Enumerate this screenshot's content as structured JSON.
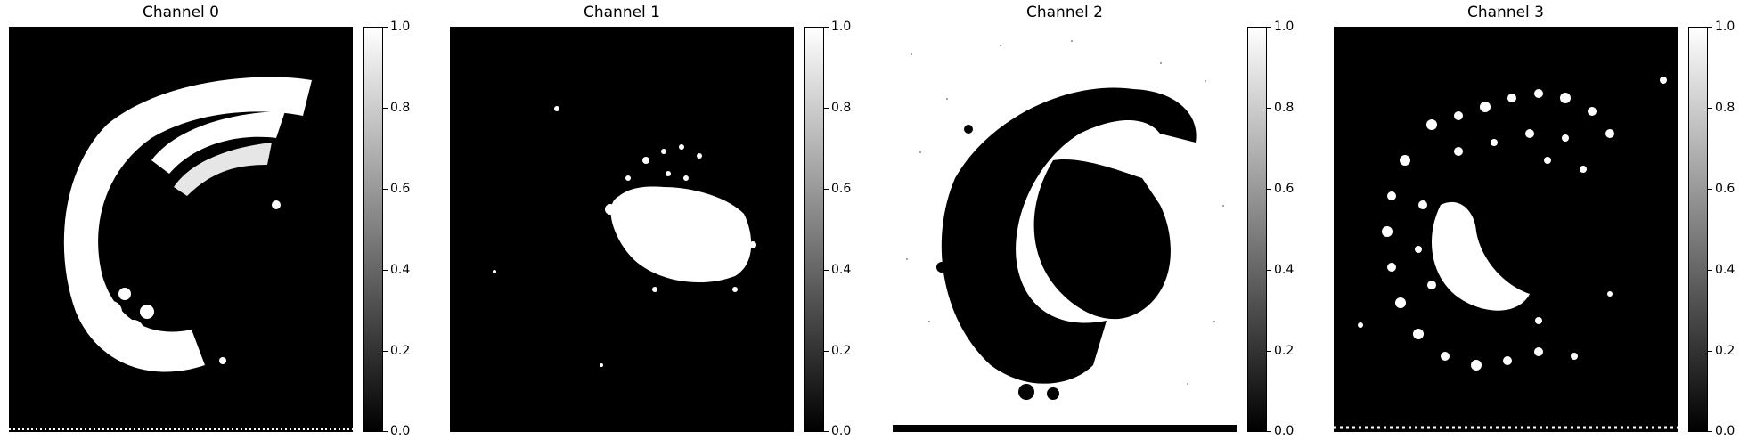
{
  "panels": [
    {
      "title": "Channel 0"
    },
    {
      "title": "Channel 1"
    },
    {
      "title": "Channel 2"
    },
    {
      "title": "Channel 3"
    }
  ],
  "colorbar": {
    "ticks": [
      "1.0",
      "0.8",
      "0.6",
      "0.4",
      "0.2",
      "0.0"
    ],
    "range": [
      0.0,
      1.0
    ],
    "colormap": "gray"
  }
}
